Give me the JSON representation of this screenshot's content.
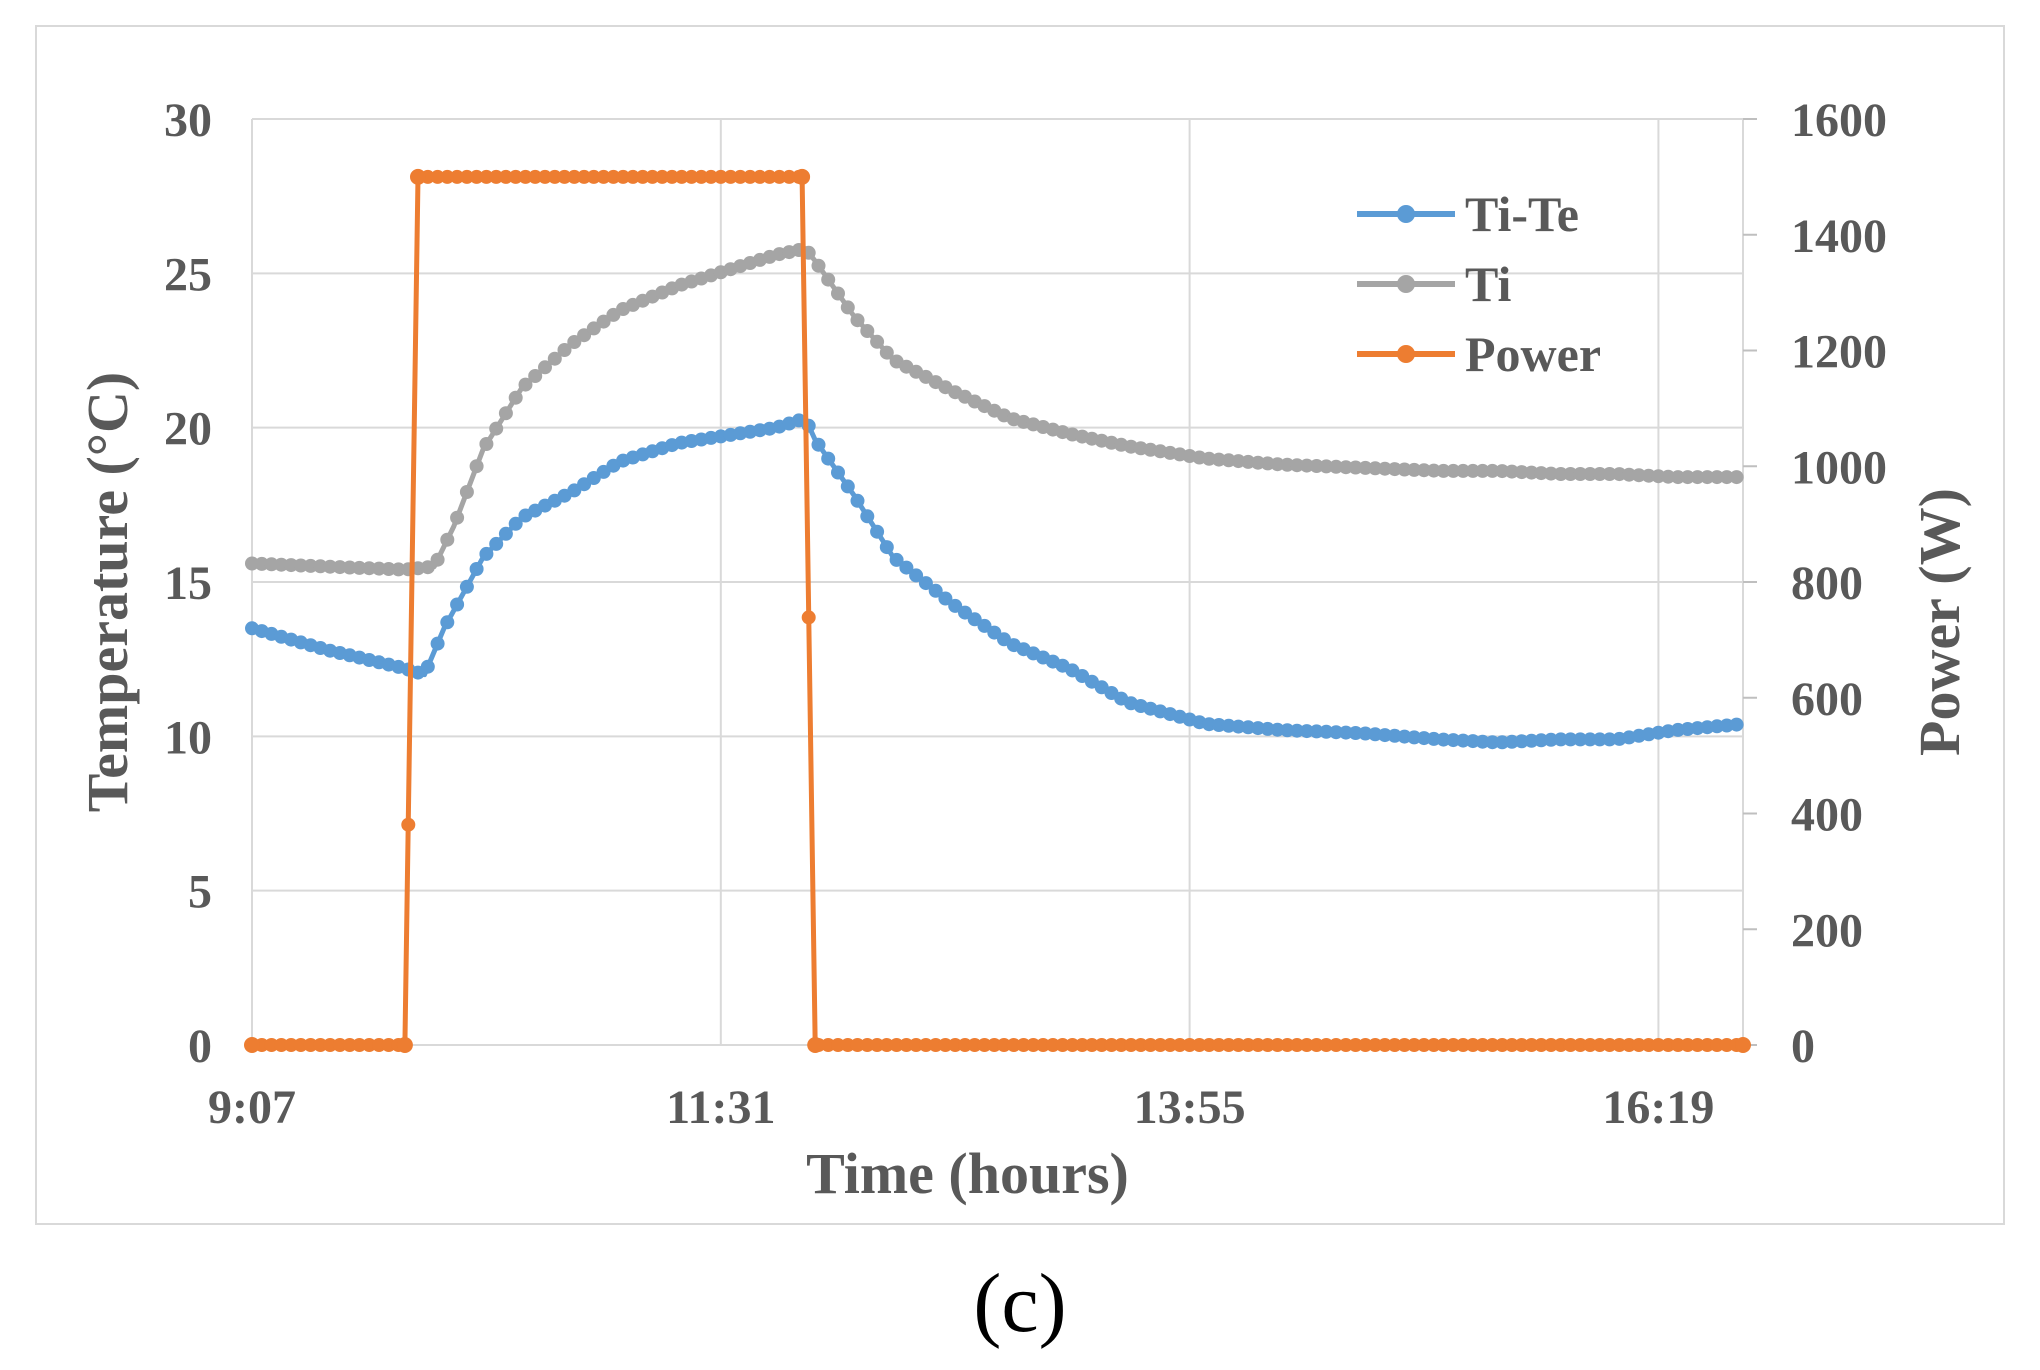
{
  "chart_data": {
    "type": "line",
    "title": "",
    "xlabel": "Time (hours)",
    "ylabel": "Temperature  (°C)",
    "y2label": "Power (W)",
    "xlim": [
      9.117,
      16.75
    ],
    "ylim": [
      0,
      30
    ],
    "y2lim": [
      0,
      1600
    ],
    "x_ticks": [
      {
        "value": 9.117,
        "label": "9:07"
      },
      {
        "value": 11.517,
        "label": "11:31"
      },
      {
        "value": 13.917,
        "label": "13:55"
      },
      {
        "value": 16.317,
        "label": "16:19"
      }
    ],
    "y_ticks": [
      "0",
      "5",
      "10",
      "15",
      "20",
      "25",
      "30"
    ],
    "y2_ticks": [
      "0",
      "200",
      "400",
      "600",
      "800",
      "1000",
      "1200",
      "1400",
      "1600"
    ],
    "grid": true,
    "legend_position": "top-right",
    "series": [
      {
        "name": "Ti-Te",
        "axis": "left",
        "color": "#5b9bd5",
        "x": [
          9.117,
          9.5,
          9.9,
          10.0,
          10.1,
          10.3,
          10.5,
          10.75,
          11.0,
          11.3,
          11.6,
          11.8,
          11.95,
          12.0,
          12.2,
          12.4,
          12.7,
          13.0,
          13.3,
          13.6,
          14.0,
          14.4,
          14.8,
          15.2,
          15.5,
          15.8,
          16.1,
          16.4,
          16.75
        ],
        "values": [
          13.5,
          12.8,
          12.2,
          12.0,
          13.5,
          15.8,
          17.1,
          17.9,
          18.9,
          19.5,
          19.8,
          20.0,
          20.3,
          19.6,
          17.8,
          15.8,
          14.3,
          13.0,
          12.2,
          11.1,
          10.4,
          10.2,
          10.1,
          9.9,
          9.8,
          9.9,
          9.9,
          10.2,
          10.4
        ]
      },
      {
        "name": "Ti",
        "axis": "left",
        "color": "#a5a5a5",
        "x": [
          9.117,
          9.5,
          9.9,
          10.05,
          10.15,
          10.3,
          10.5,
          10.75,
          11.0,
          11.3,
          11.6,
          11.8,
          11.95,
          12.0,
          12.2,
          12.4,
          12.7,
          13.0,
          13.3,
          13.6,
          14.0,
          14.4,
          14.8,
          15.2,
          15.5,
          15.8,
          16.1,
          16.4,
          16.75
        ],
        "values": [
          15.6,
          15.5,
          15.4,
          15.5,
          16.8,
          19.3,
          21.3,
          22.7,
          23.8,
          24.6,
          25.2,
          25.6,
          25.8,
          25.4,
          23.6,
          22.2,
          21.2,
          20.3,
          19.8,
          19.4,
          19.0,
          18.8,
          18.7,
          18.6,
          18.6,
          18.5,
          18.5,
          18.4,
          18.4
        ]
      },
      {
        "name": "Power",
        "axis": "right",
        "color": "#ed7d31",
        "x": [
          9.117,
          9.9,
          9.967,
          11.933,
          12.0,
          16.75
        ],
        "values": [
          0,
          0,
          1500,
          1500,
          0,
          0
        ]
      }
    ]
  },
  "caption": "(c)"
}
